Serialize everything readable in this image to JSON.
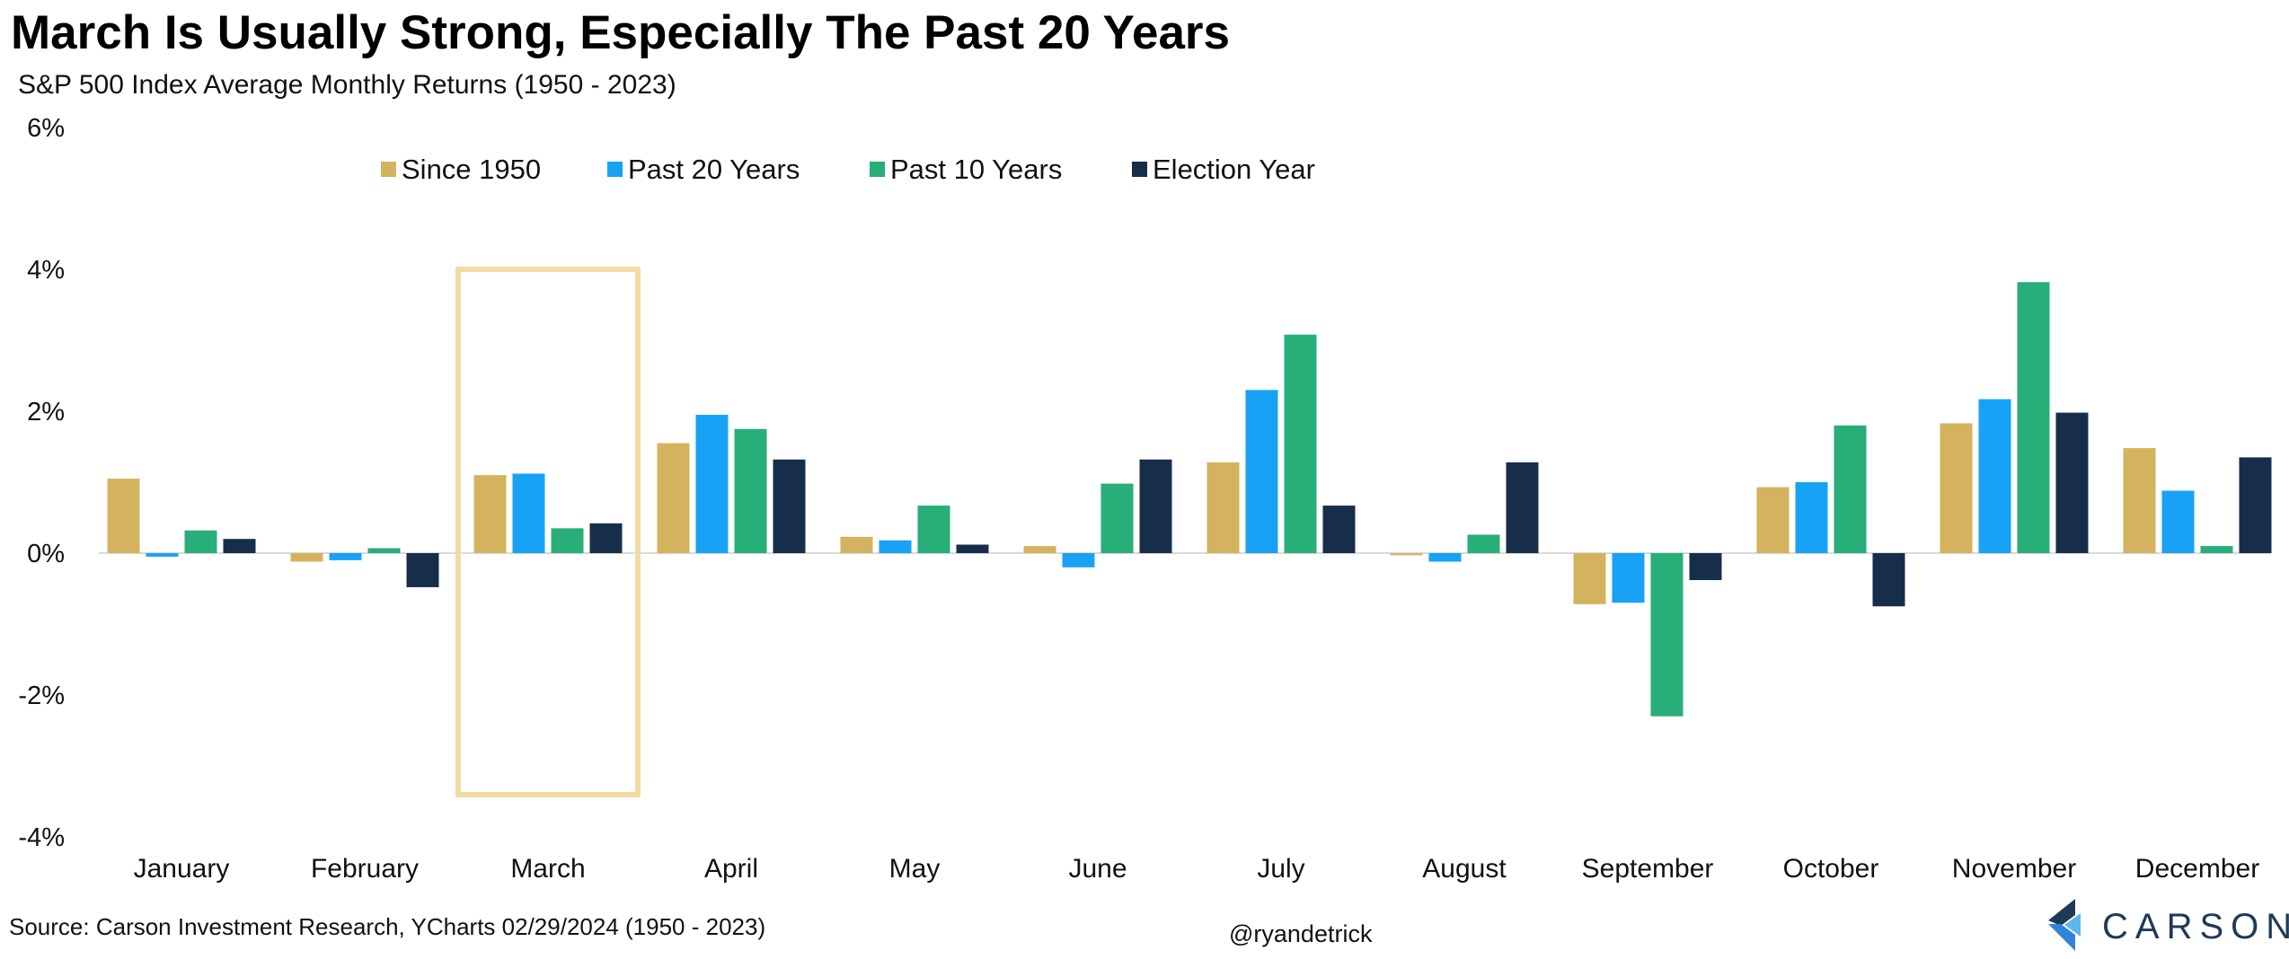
{
  "header": {
    "title": "March Is Usually Strong, Especially The Past 20 Years",
    "subtitle": "S&P 500 Index Average Monthly Returns (1950 - 2023)"
  },
  "footer": {
    "source": "Source: Carson Investment Research, YCharts 02/29/2024 (1950 - 2023)",
    "handle": "@ryandetrick",
    "brand": "CARSON"
  },
  "chart_data": {
    "type": "bar",
    "title": "March Is Usually Strong, Especially The Past 20 Years",
    "subtitle": "S&P 500 Index Average Monthly Returns (1950 - 2023)",
    "categories": [
      "January",
      "February",
      "March",
      "April",
      "May",
      "June",
      "July",
      "August",
      "September",
      "October",
      "November",
      "December"
    ],
    "series": [
      {
        "name": "Since 1950",
        "color": "#D4B35E",
        "values": [
          1.05,
          -0.12,
          1.1,
          1.55,
          0.23,
          0.1,
          1.28,
          -0.03,
          -0.72,
          0.93,
          1.83,
          1.48
        ]
      },
      {
        "name": "Past 20 Years",
        "color": "#17A2F5",
        "values": [
          -0.05,
          -0.1,
          1.12,
          1.95,
          0.18,
          -0.2,
          2.3,
          -0.12,
          -0.7,
          1.0,
          2.17,
          0.88
        ]
      },
      {
        "name": "Past 10 Years",
        "color": "#27AE79",
        "values": [
          0.32,
          0.07,
          0.35,
          1.75,
          0.67,
          0.98,
          3.08,
          0.26,
          -2.3,
          1.8,
          3.82,
          0.1
        ]
      },
      {
        "name": "Election Year",
        "color": "#172E4A",
        "values": [
          0.2,
          -0.48,
          0.42,
          1.32,
          0.12,
          1.32,
          0.67,
          1.28,
          -0.38,
          -0.75,
          1.98,
          1.35
        ]
      }
    ],
    "ylim": [
      -4,
      6
    ],
    "yticks": [
      6,
      4,
      2,
      0,
      -2,
      -4
    ],
    "ytick_labels": [
      "6%",
      "4%",
      "2%",
      "0%",
      "-2%",
      "-4%"
    ],
    "xlabel": "",
    "ylabel": "",
    "grid": false,
    "legend_position": "top",
    "highlight": {
      "category": "March",
      "color": "#EFDDA2"
    }
  }
}
